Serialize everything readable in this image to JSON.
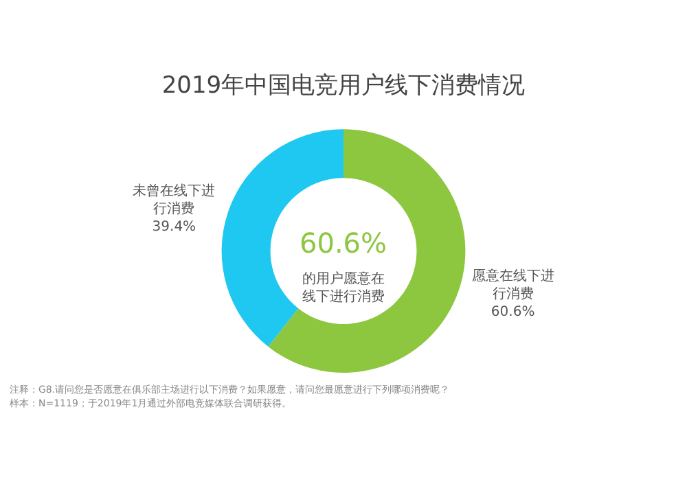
{
  "chart_data": {
    "type": "donut",
    "title": "2019年中国电竞用户线下消费情况",
    "categories": [
      "愿意在线下进行消费",
      "未曾在线下进行消费"
    ],
    "values": [
      60.6,
      39.4
    ],
    "colors": [
      "#8dc63f",
      "#1ec8f0"
    ],
    "value_labels": [
      "60.6%",
      "39.4%"
    ],
    "legend": false,
    "annotations": [
      "60.6%",
      "的用户愿意在线下进行消费",
      "注释：G8.请问您是否愿意在俱乐部主场进行以下消费？如果愿意，请问您最愿意进行下列哪项消费呢？",
      "样本：N=1119；于2019年1月通过外部电竞媒体联合调研获得。"
    ]
  }
}
